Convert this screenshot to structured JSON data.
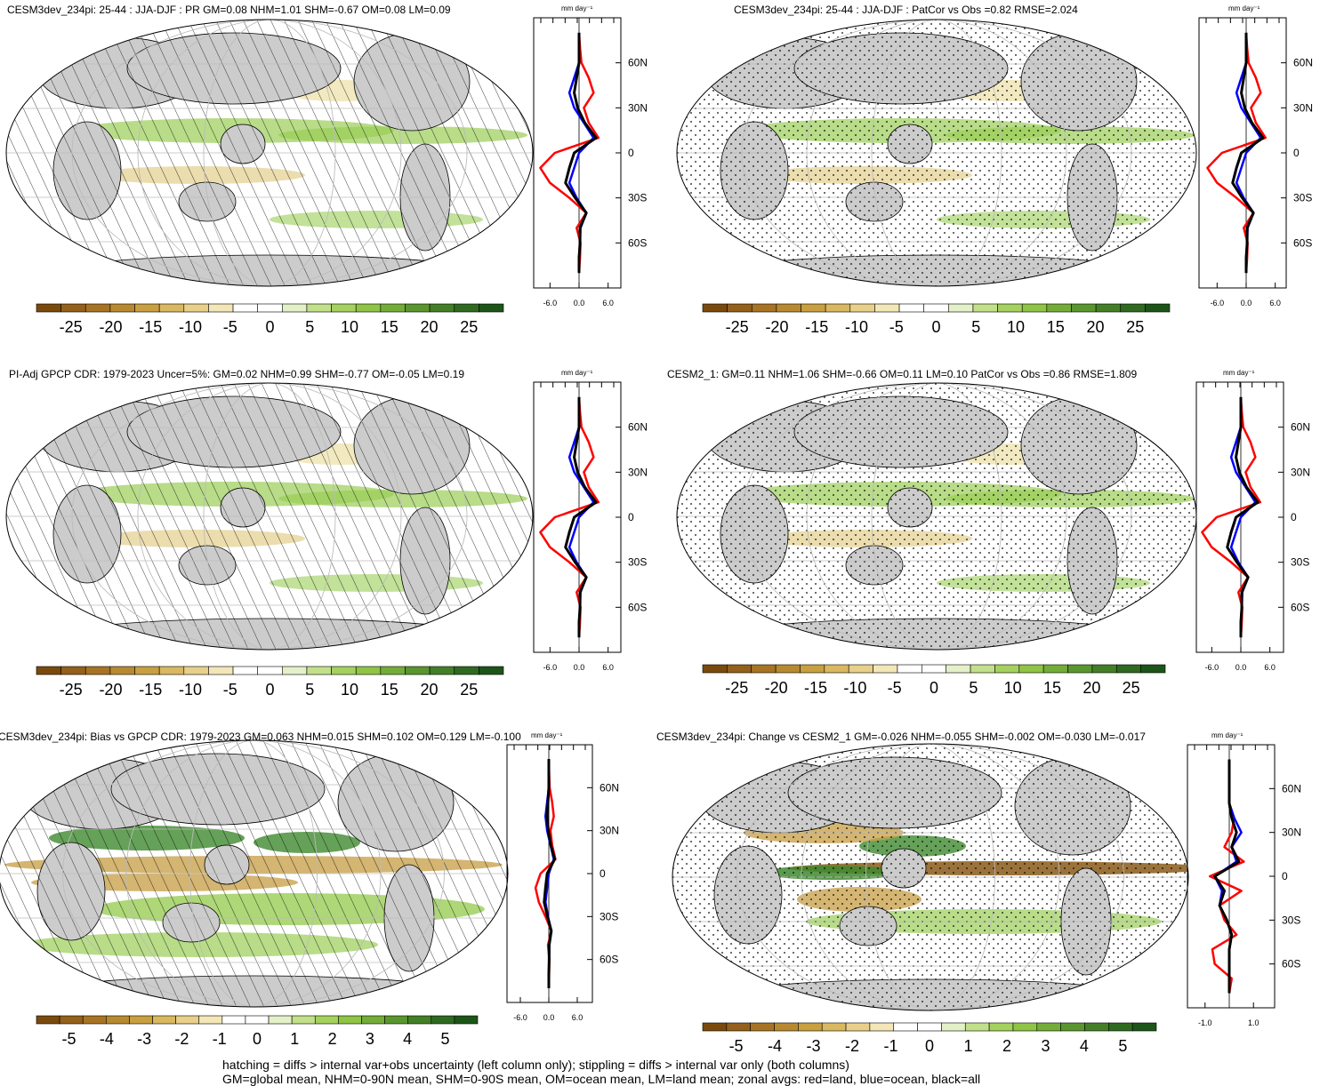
{
  "panels": [
    {
      "id": "p1",
      "title": "CESM3dev_234pi: 25-44 : JJA-DJF : PR GM=0.08 NHM=1.01 SHM=-0.67 OM=0.08 LM=0.09",
      "pattern": "hatch",
      "cbar": "main",
      "zonal": "main"
    },
    {
      "id": "p2",
      "title": "CESM3dev_234pi: 25-44 : JJA-DJF : PatCor vs Obs =0.82 RMSE=2.024",
      "pattern": "stipple",
      "cbar": "main",
      "zonal": "main"
    },
    {
      "id": "p3",
      "title": "PI-Adj GPCP CDR: 1979-2023 Uncer=5%: GM=0.02 NHM=0.99 SHM=-0.77 OM=-0.05 LM=0.19",
      "pattern": "hatch",
      "cbar": "main",
      "zonal": "main"
    },
    {
      "id": "p4",
      "title": "CESM2_1: GM=0.11 NHM=1.06 SHM=-0.66 OM=0.11 LM=0.10 PatCor vs Obs =0.86 RMSE=1.809",
      "pattern": "stipple",
      "cbar": "main",
      "zonal": "main"
    },
    {
      "id": "p5",
      "title": "CESM3dev_234pi: Bias vs GPCP CDR: 1979-2023 GM=0.063 NHM=0.015 SHM=0.102 OM=0.129 LM=-0.100",
      "pattern": "hatch",
      "cbar": "diff",
      "zonal": "diff5"
    },
    {
      "id": "p6",
      "title": "CESM3dev_234pi: Change vs CESM2_1 GM=-0.026 NHM=-0.055 SHM=-0.002 OM=-0.030 LM=-0.017",
      "pattern": "stipple",
      "cbar": "diff",
      "zonal": "diff6"
    }
  ],
  "zonal_units": "mm day⁻¹",
  "lat_ticks": [
    "60N",
    "30N",
    "0",
    "30S",
    "60S"
  ],
  "colorbars": {
    "main": {
      "labels": [
        "-25",
        "-20",
        "-15",
        "-10",
        "-5",
        "0",
        "5",
        "10",
        "15",
        "20",
        "25"
      ]
    },
    "diff": {
      "labels": [
        "-5",
        "-4",
        "-3",
        "-2",
        "-1",
        "0",
        "1",
        "2",
        "3",
        "4",
        "5"
      ]
    }
  },
  "zonal_axes": {
    "main": {
      "xticks": [
        "-6.0",
        "0.0",
        "6.0"
      ],
      "xlim": [
        -9,
        9
      ]
    },
    "diff5": {
      "xticks": [
        "-6.0",
        "0.0",
        "6.0"
      ],
      "xlim": [
        -9,
        9
      ]
    },
    "diff6": {
      "xticks": [
        "-1.0",
        "1.0"
      ],
      "xlim": [
        -1.8,
        1.8
      ]
    }
  },
  "colors": {
    "land": "#ff0000",
    "ocean": "#0000ff",
    "all": "#000000",
    "continent": "#cccccc",
    "wet": "#8fc445",
    "dry": "#d4b36a"
  },
  "chart_data": {
    "type": "line",
    "lat": [
      -80,
      -70,
      -60,
      -50,
      -40,
      -30,
      -20,
      -10,
      0,
      10,
      20,
      30,
      40,
      50,
      60,
      70,
      80
    ],
    "series": [
      {
        "name": "land",
        "panel": "p1",
        "values": [
          0,
          0.2,
          0.3,
          -0.5,
          1.5,
          -2,
          -6,
          -8,
          -5,
          4,
          2,
          1,
          3,
          2,
          0.5,
          0.2,
          0
        ]
      },
      {
        "name": "ocean",
        "panel": "p1",
        "values": [
          0,
          0,
          0.2,
          0.3,
          1.5,
          -0.5,
          -2,
          -1,
          0,
          3,
          1,
          -1,
          -2,
          -1,
          0,
          0,
          0
        ]
      },
      {
        "name": "all",
        "panel": "p1",
        "values": [
          0,
          0,
          0.2,
          0.2,
          1.5,
          -0.8,
          -2.8,
          -2,
          -1,
          3.5,
          1.2,
          -0.3,
          -1,
          -0.5,
          0,
          0,
          0
        ]
      },
      {
        "name": "land",
        "panel": "p6",
        "values": [
          0,
          0.1,
          -0.6,
          -0.7,
          0.3,
          -0.2,
          -0.4,
          0.5,
          -0.8,
          0.6,
          -0.2,
          0.1,
          0.2,
          0,
          0,
          0,
          0
        ]
      },
      {
        "name": "ocean",
        "panel": "p6",
        "values": [
          0,
          0,
          0,
          0,
          0.1,
          -0.1,
          -0.4,
          -0.3,
          -0.6,
          0.3,
          0.1,
          0.5,
          0.2,
          0,
          0,
          0,
          0
        ]
      },
      {
        "name": "all",
        "panel": "p6",
        "values": [
          0,
          0,
          0,
          0,
          0.1,
          -0.1,
          -0.4,
          -0.2,
          -0.6,
          0.4,
          0.1,
          0.3,
          0.1,
          0,
          0,
          0,
          0
        ]
      }
    ]
  },
  "footer": {
    "line1": "hatching = diffs > internal var+obs uncertainty (left column only); stippling = diffs > internal var only (both columns)",
    "line2": "GM=global mean, NHM=0-90N mean, SHM=0-90S mean, OM=ocean mean, LM=land mean; zonal avgs: red=land, blue=ocean, black=all"
  }
}
